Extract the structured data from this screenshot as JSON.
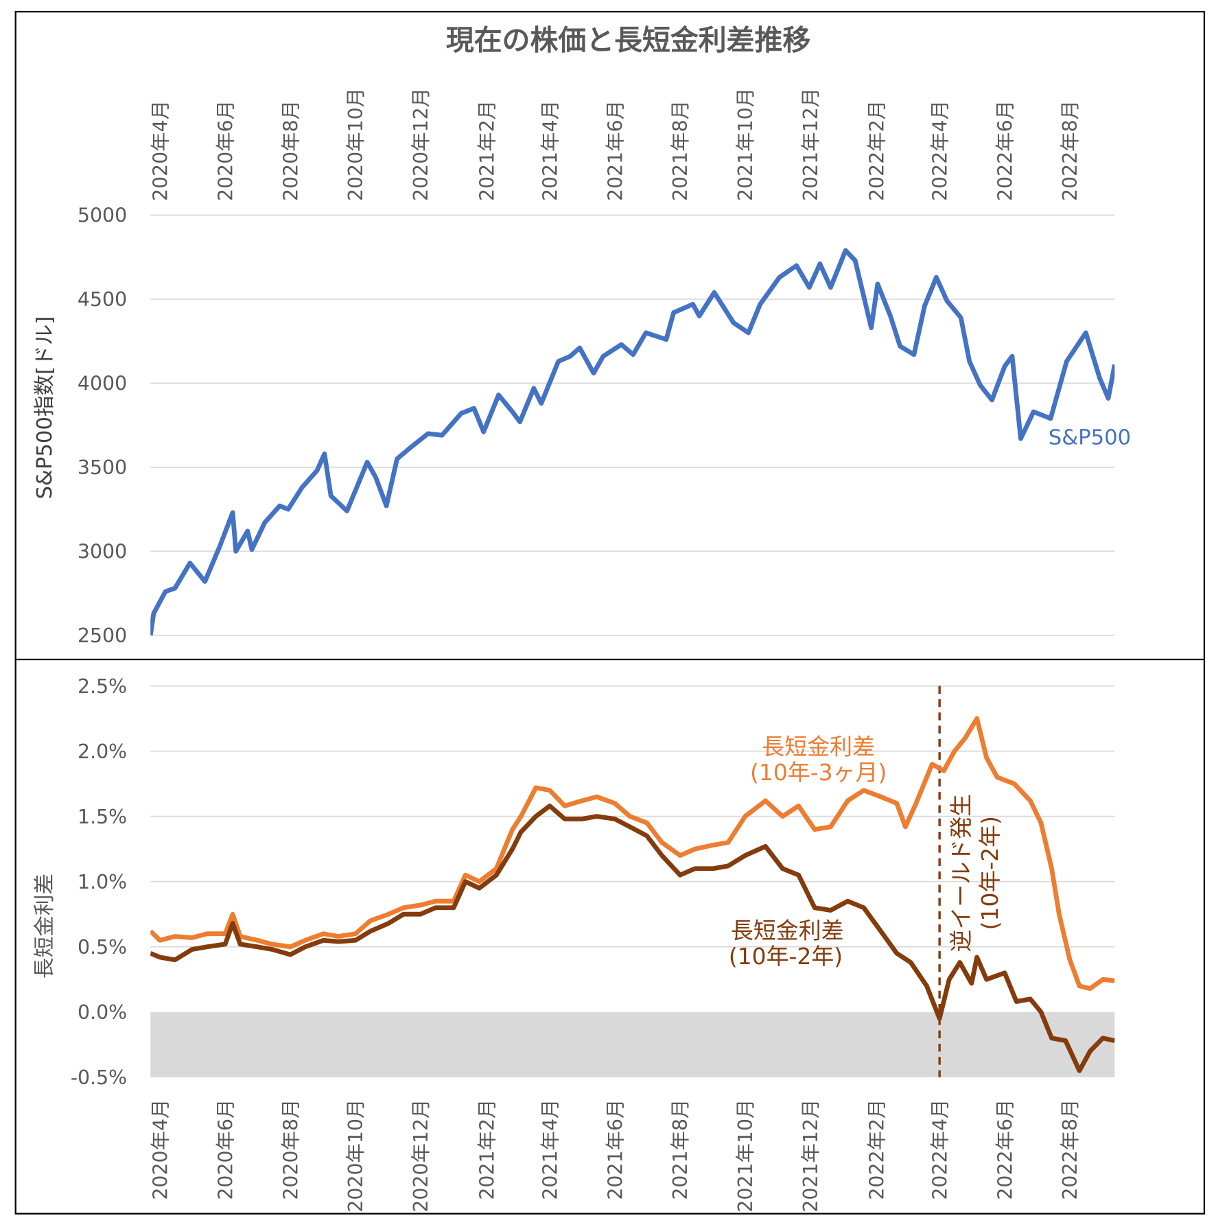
{
  "title": "現在の株価と長短金利差推移",
  "chart_data": [
    {
      "type": "line",
      "ylabel": "S&P500指数[ドル]",
      "ylim": [
        2500,
        5000
      ],
      "yticks": [
        "2500",
        "3000",
        "3500",
        "4000",
        "4500",
        "5000"
      ],
      "xticks": [
        "2020年4月",
        "2020年6月",
        "2020年8月",
        "2020年10月",
        "2020年12月",
        "2021年2月",
        "2021年4月",
        "2021年6月",
        "2021年8月",
        "2021年10月",
        "2021年12月",
        "2022年2月",
        "2022年4月",
        "2022年6月",
        "2022年8月"
      ],
      "grid": true,
      "series": [
        {
          "name": "S&P500",
          "color": "#4472c4",
          "points": [
            [
              "2020-03-23",
              2500
            ],
            [
              "2020-03-26",
              2630
            ],
            [
              "2020-04-06",
              2760
            ],
            [
              "2020-04-15",
              2780
            ],
            [
              "2020-04-29",
              2930
            ],
            [
              "2020-05-13",
              2820
            ],
            [
              "2020-05-27",
              3030
            ],
            [
              "2020-06-08",
              3230
            ],
            [
              "2020-06-11",
              3000
            ],
            [
              "2020-06-22",
              3120
            ],
            [
              "2020-06-26",
              3010
            ],
            [
              "2020-07-08",
              3170
            ],
            [
              "2020-07-22",
              3270
            ],
            [
              "2020-07-30",
              3250
            ],
            [
              "2020-08-12",
              3380
            ],
            [
              "2020-08-26",
              3480
            ],
            [
              "2020-09-02",
              3580
            ],
            [
              "2020-09-08",
              3330
            ],
            [
              "2020-09-23",
              3240
            ],
            [
              "2020-10-12",
              3530
            ],
            [
              "2020-10-20",
              3440
            ],
            [
              "2020-10-30",
              3270
            ],
            [
              "2020-11-09",
              3550
            ],
            [
              "2020-11-24",
              3630
            ],
            [
              "2020-12-08",
              3700
            ],
            [
              "2020-12-21",
              3690
            ],
            [
              "2021-01-08",
              3820
            ],
            [
              "2021-01-20",
              3850
            ],
            [
              "2021-01-29",
              3710
            ],
            [
              "2021-02-12",
              3930
            ],
            [
              "2021-02-25",
              3830
            ],
            [
              "2021-03-04",
              3770
            ],
            [
              "2021-03-17",
              3970
            ],
            [
              "2021-03-24",
              3880
            ],
            [
              "2021-04-09",
              4130
            ],
            [
              "2021-04-20",
              4160
            ],
            [
              "2021-04-29",
              4210
            ],
            [
              "2021-05-12",
              4060
            ],
            [
              "2021-05-21",
              4160
            ],
            [
              "2021-06-07",
              4230
            ],
            [
              "2021-06-18",
              4170
            ],
            [
              "2021-06-30",
              4300
            ],
            [
              "2021-07-19",
              4260
            ],
            [
              "2021-07-26",
              4420
            ],
            [
              "2021-08-13",
              4470
            ],
            [
              "2021-08-19",
              4400
            ],
            [
              "2021-09-02",
              4540
            ],
            [
              "2021-09-20",
              4360
            ],
            [
              "2021-10-04",
              4300
            ],
            [
              "2021-10-15",
              4470
            ],
            [
              "2021-11-02",
              4630
            ],
            [
              "2021-11-18",
              4700
            ],
            [
              "2021-11-30",
              4570
            ],
            [
              "2021-12-10",
              4710
            ],
            [
              "2021-12-20",
              4570
            ],
            [
              "2022-01-03",
              4790
            ],
            [
              "2022-01-12",
              4730
            ],
            [
              "2022-01-27",
              4330
            ],
            [
              "2022-02-02",
              4590
            ],
            [
              "2022-02-14",
              4400
            ],
            [
              "2022-02-23",
              4220
            ],
            [
              "2022-03-08",
              4170
            ],
            [
              "2022-03-18",
              4460
            ],
            [
              "2022-03-29",
              4630
            ],
            [
              "2022-04-08",
              4490
            ],
            [
              "2022-04-21",
              4390
            ],
            [
              "2022-04-29",
              4130
            ],
            [
              "2022-05-09",
              3990
            ],
            [
              "2022-05-20",
              3900
            ],
            [
              "2022-06-01",
              4100
            ],
            [
              "2022-06-08",
              4160
            ],
            [
              "2022-06-16",
              3670
            ],
            [
              "2022-06-28",
              3830
            ],
            [
              "2022-07-14",
              3790
            ],
            [
              "2022-07-29",
              4130
            ],
            [
              "2022-08-16",
              4300
            ],
            [
              "2022-08-29",
              4030
            ],
            [
              "2022-09-06",
              3910
            ],
            [
              "2022-09-12",
              4110
            ]
          ]
        }
      ]
    },
    {
      "type": "line",
      "ylabel": "長短金利差",
      "ylim": [
        -0.5,
        2.5
      ],
      "yticks": [
        "-0.5%",
        "0.0%",
        "0.5%",
        "1.0%",
        "1.5%",
        "2.0%",
        "2.5%"
      ],
      "xticks": [
        "2020年4月",
        "2020年6月",
        "2020年8月",
        "2020年10月",
        "2020年12月",
        "2021年2月",
        "2021年4月",
        "2021年6月",
        "2021年8月",
        "2021年10月",
        "2021年12月",
        "2022年2月",
        "2022年4月",
        "2022年6月",
        "2022年8月"
      ],
      "grid": true,
      "negative_region_color": "#d9d9d9",
      "series": [
        {
          "name": "長短金利差(10年-3ヶ月)",
          "label_lines": [
            "長短金利差",
            "(10年-3ヶ月)"
          ],
          "color": "#ed7d31",
          "points": [
            [
              "2020-03-23",
              0.62
            ],
            [
              "2020-04-01",
              0.55
            ],
            [
              "2020-04-15",
              0.58
            ],
            [
              "2020-05-01",
              0.57
            ],
            [
              "2020-05-15",
              0.6
            ],
            [
              "2020-06-01",
              0.6
            ],
            [
              "2020-06-08",
              0.75
            ],
            [
              "2020-06-15",
              0.58
            ],
            [
              "2020-07-01",
              0.55
            ],
            [
              "2020-07-15",
              0.52
            ],
            [
              "2020-08-01",
              0.5
            ],
            [
              "2020-08-15",
              0.55
            ],
            [
              "2020-09-01",
              0.6
            ],
            [
              "2020-09-15",
              0.58
            ],
            [
              "2020-10-01",
              0.6
            ],
            [
              "2020-10-15",
              0.7
            ],
            [
              "2020-11-01",
              0.75
            ],
            [
              "2020-11-15",
              0.8
            ],
            [
              "2020-12-01",
              0.82
            ],
            [
              "2020-12-15",
              0.85
            ],
            [
              "2021-01-01",
              0.85
            ],
            [
              "2021-01-12",
              1.05
            ],
            [
              "2021-01-25",
              1.0
            ],
            [
              "2021-02-10",
              1.1
            ],
            [
              "2021-02-25",
              1.4
            ],
            [
              "2021-03-05",
              1.5
            ],
            [
              "2021-03-19",
              1.72
            ],
            [
              "2021-04-01",
              1.7
            ],
            [
              "2021-04-15",
              1.58
            ],
            [
              "2021-05-01",
              1.62
            ],
            [
              "2021-05-15",
              1.65
            ],
            [
              "2021-06-01",
              1.6
            ],
            [
              "2021-06-15",
              1.5
            ],
            [
              "2021-07-01",
              1.45
            ],
            [
              "2021-07-15",
              1.3
            ],
            [
              "2021-08-01",
              1.2
            ],
            [
              "2021-08-15",
              1.25
            ],
            [
              "2021-09-01",
              1.28
            ],
            [
              "2021-09-15",
              1.3
            ],
            [
              "2021-10-01",
              1.5
            ],
            [
              "2021-10-20",
              1.62
            ],
            [
              "2021-11-05",
              1.5
            ],
            [
              "2021-11-20",
              1.58
            ],
            [
              "2021-12-05",
              1.4
            ],
            [
              "2021-12-20",
              1.42
            ],
            [
              "2022-01-05",
              1.62
            ],
            [
              "2022-01-20",
              1.7
            ],
            [
              "2022-02-05",
              1.65
            ],
            [
              "2022-02-20",
              1.6
            ],
            [
              "2022-02-28",
              1.42
            ],
            [
              "2022-03-10",
              1.6
            ],
            [
              "2022-03-25",
              1.9
            ],
            [
              "2022-04-05",
              1.85
            ],
            [
              "2022-04-15",
              2.0
            ],
            [
              "2022-04-25",
              2.1
            ],
            [
              "2022-05-06",
              2.25
            ],
            [
              "2022-05-15",
              1.95
            ],
            [
              "2022-05-25",
              1.8
            ],
            [
              "2022-06-10",
              1.75
            ],
            [
              "2022-06-25",
              1.62
            ],
            [
              "2022-07-05",
              1.45
            ],
            [
              "2022-07-15",
              1.1
            ],
            [
              "2022-07-22",
              0.75
            ],
            [
              "2022-08-01",
              0.4
            ],
            [
              "2022-08-10",
              0.2
            ],
            [
              "2022-08-20",
              0.18
            ],
            [
              "2022-09-01",
              0.25
            ],
            [
              "2022-09-12",
              0.24
            ]
          ]
        },
        {
          "name": "長短金利差(10年-2年)",
          "label_lines": [
            "長短金利差",
            "(10年-2年)"
          ],
          "color": "#843c0c",
          "points": [
            [
              "2020-03-23",
              0.45
            ],
            [
              "2020-04-01",
              0.42
            ],
            [
              "2020-04-15",
              0.4
            ],
            [
              "2020-05-01",
              0.48
            ],
            [
              "2020-05-15",
              0.5
            ],
            [
              "2020-06-01",
              0.52
            ],
            [
              "2020-06-08",
              0.68
            ],
            [
              "2020-06-15",
              0.52
            ],
            [
              "2020-07-01",
              0.5
            ],
            [
              "2020-07-15",
              0.48
            ],
            [
              "2020-08-01",
              0.44
            ],
            [
              "2020-08-15",
              0.5
            ],
            [
              "2020-09-01",
              0.55
            ],
            [
              "2020-09-15",
              0.54
            ],
            [
              "2020-10-01",
              0.55
            ],
            [
              "2020-10-15",
              0.62
            ],
            [
              "2020-11-01",
              0.68
            ],
            [
              "2020-11-15",
              0.75
            ],
            [
              "2020-12-01",
              0.75
            ],
            [
              "2020-12-15",
              0.8
            ],
            [
              "2021-01-01",
              0.8
            ],
            [
              "2021-01-12",
              1.0
            ],
            [
              "2021-01-25",
              0.95
            ],
            [
              "2021-02-10",
              1.05
            ],
            [
              "2021-02-25",
              1.25
            ],
            [
              "2021-03-05",
              1.38
            ],
            [
              "2021-03-19",
              1.5
            ],
            [
              "2021-04-01",
              1.58
            ],
            [
              "2021-04-15",
              1.48
            ],
            [
              "2021-05-01",
              1.48
            ],
            [
              "2021-05-15",
              1.5
            ],
            [
              "2021-06-01",
              1.48
            ],
            [
              "2021-06-15",
              1.42
            ],
            [
              "2021-07-01",
              1.35
            ],
            [
              "2021-07-15",
              1.2
            ],
            [
              "2021-08-01",
              1.05
            ],
            [
              "2021-08-15",
              1.1
            ],
            [
              "2021-09-01",
              1.1
            ],
            [
              "2021-09-15",
              1.12
            ],
            [
              "2021-10-01",
              1.2
            ],
            [
              "2021-10-20",
              1.27
            ],
            [
              "2021-11-05",
              1.1
            ],
            [
              "2021-11-20",
              1.05
            ],
            [
              "2021-12-05",
              0.8
            ],
            [
              "2021-12-20",
              0.78
            ],
            [
              "2022-01-05",
              0.85
            ],
            [
              "2022-01-20",
              0.8
            ],
            [
              "2022-02-05",
              0.62
            ],
            [
              "2022-02-20",
              0.45
            ],
            [
              "2022-03-05",
              0.38
            ],
            [
              "2022-03-20",
              0.2
            ],
            [
              "2022-04-01",
              -0.05
            ],
            [
              "2022-04-10",
              0.25
            ],
            [
              "2022-04-20",
              0.38
            ],
            [
              "2022-05-01",
              0.22
            ],
            [
              "2022-05-06",
              0.42
            ],
            [
              "2022-05-15",
              0.25
            ],
            [
              "2022-06-01",
              0.3
            ],
            [
              "2022-06-12",
              0.08
            ],
            [
              "2022-06-25",
              0.1
            ],
            [
              "2022-07-05",
              0.0
            ],
            [
              "2022-07-15",
              -0.2
            ],
            [
              "2022-07-28",
              -0.22
            ],
            [
              "2022-08-10",
              -0.45
            ],
            [
              "2022-08-20",
              -0.3
            ],
            [
              "2022-09-01",
              -0.2
            ],
            [
              "2022-09-12",
              -0.22
            ]
          ]
        }
      ],
      "annotations": [
        {
          "date": "2022-04-01",
          "style": "dashed-vertical",
          "color": "#843c0c",
          "label_lines": [
            "逆イールド発生",
            "(10年-2年)"
          ]
        }
      ]
    }
  ]
}
